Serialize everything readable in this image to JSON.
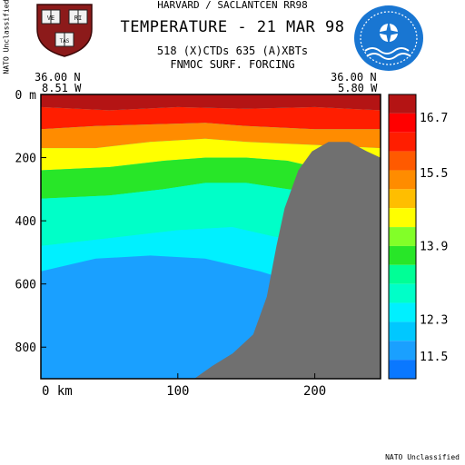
{
  "header": {
    "line1": "HARVARD / SACLANTCEN RR98",
    "title": "TEMPERATURE - 21 MAR 98",
    "line3": "518 (X)CTDs   635 (A)XBTs",
    "line4": "FNMOC SURF. FORCING"
  },
  "classification": {
    "side": "NATO Unclassified",
    "bottom": "NATO Unclassified"
  },
  "endpoints": {
    "left_lat": "36.00 N",
    "left_lon": "8.51 W",
    "right_lat": "36.00 N",
    "right_lon": "5.80 W"
  },
  "logos": {
    "left": "harvard-shield",
    "right": "nato-saclantcen-emblem",
    "left_text": [
      "VE",
      "RI",
      "TAS"
    ]
  },
  "colors": {
    "bathymetry": "#707070",
    "palette": [
      "#0a78ff",
      "#1aa0ff",
      "#00c8ff",
      "#00f0ff",
      "#00ffc8",
      "#00ff96",
      "#28e628",
      "#82ff28",
      "#ffff00",
      "#ffbe00",
      "#ff8c00",
      "#ff5a00",
      "#ff1e00",
      "#ff0000",
      "#b41414"
    ]
  },
  "chart_data": {
    "type": "heatmap",
    "title": "TEMPERATURE - 21 MAR 98",
    "xlabel": "",
    "ylabel": "",
    "xunit": "km",
    "x_ticks": [
      0,
      100,
      200
    ],
    "x_tick_labels": [
      "0 km",
      "100",
      "200"
    ],
    "y_ticks": [
      0,
      200,
      400,
      600,
      800
    ],
    "y_tick_labels": [
      "0 m",
      "200",
      "400",
      "600",
      "800"
    ],
    "xlim": [
      0,
      248
    ],
    "ylim": [
      0,
      900
    ],
    "y_inverted": true,
    "colorbar": {
      "min": 11.0,
      "max": 17.2,
      "tick_values": [
        16.7,
        15.5,
        13.9,
        12.3,
        11.5
      ],
      "tick_labels": [
        "16.7",
        "15.5",
        "13.9",
        "12.3",
        "11.5"
      ]
    },
    "layers": [
      {
        "temp": 16.9,
        "points": [
          [
            0,
            0
          ],
          [
            248,
            0
          ],
          [
            248,
            50
          ],
          [
            200,
            40
          ],
          [
            150,
            45
          ],
          [
            100,
            40
          ],
          [
            50,
            50
          ],
          [
            0,
            40
          ]
        ]
      },
      {
        "temp": 16.2,
        "points": [
          [
            0,
            40
          ],
          [
            50,
            50
          ],
          [
            100,
            40
          ],
          [
            150,
            45
          ],
          [
            200,
            40
          ],
          [
            248,
            50
          ],
          [
            248,
            110
          ],
          [
            200,
            110
          ],
          [
            150,
            100
          ],
          [
            120,
            90
          ],
          [
            80,
            95
          ],
          [
            40,
            100
          ],
          [
            0,
            110
          ]
        ]
      },
      {
        "temp": 15.4,
        "points": [
          [
            0,
            110
          ],
          [
            40,
            100
          ],
          [
            80,
            95
          ],
          [
            120,
            90
          ],
          [
            150,
            100
          ],
          [
            200,
            110
          ],
          [
            248,
            110
          ],
          [
            248,
            170
          ],
          [
            200,
            160
          ],
          [
            150,
            150
          ],
          [
            120,
            140
          ],
          [
            80,
            150
          ],
          [
            40,
            170
          ],
          [
            0,
            170
          ]
        ]
      },
      {
        "temp": 14.5,
        "points": [
          [
            0,
            170
          ],
          [
            40,
            170
          ],
          [
            80,
            150
          ],
          [
            120,
            140
          ],
          [
            150,
            150
          ],
          [
            200,
            160
          ],
          [
            248,
            170
          ],
          [
            248,
            250
          ],
          [
            200,
            230
          ],
          [
            180,
            210
          ],
          [
            150,
            200
          ],
          [
            120,
            200
          ],
          [
            90,
            210
          ],
          [
            50,
            230
          ],
          [
            0,
            240
          ]
        ]
      },
      {
        "temp": 13.7,
        "points": [
          [
            0,
            240
          ],
          [
            50,
            230
          ],
          [
            90,
            210
          ],
          [
            120,
            200
          ],
          [
            150,
            200
          ],
          [
            180,
            210
          ],
          [
            200,
            230
          ],
          [
            248,
            250
          ],
          [
            248,
            340
          ],
          [
            200,
            310
          ],
          [
            180,
            300
          ],
          [
            150,
            280
          ],
          [
            120,
            280
          ],
          [
            90,
            300
          ],
          [
            50,
            320
          ],
          [
            0,
            330
          ]
        ]
      },
      {
        "temp": 12.9,
        "points": [
          [
            0,
            330
          ],
          [
            50,
            320
          ],
          [
            90,
            300
          ],
          [
            120,
            280
          ],
          [
            150,
            280
          ],
          [
            180,
            300
          ],
          [
            200,
            310
          ],
          [
            248,
            340
          ],
          [
            248,
            500
          ],
          [
            200,
            470
          ],
          [
            170,
            450
          ],
          [
            140,
            420
          ],
          [
            100,
            430
          ],
          [
            60,
            450
          ],
          [
            0,
            480
          ]
        ]
      },
      {
        "temp": 12.3,
        "points": [
          [
            0,
            480
          ],
          [
            60,
            450
          ],
          [
            100,
            430
          ],
          [
            140,
            420
          ],
          [
            170,
            450
          ],
          [
            200,
            470
          ],
          [
            248,
            500
          ],
          [
            248,
            900
          ],
          [
            0,
            900
          ]
        ]
      },
      {
        "temp": 11.6,
        "points": [
          [
            0,
            560
          ],
          [
            40,
            520
          ],
          [
            80,
            510
          ],
          [
            120,
            520
          ],
          [
            160,
            560
          ],
          [
            190,
            600
          ],
          [
            248,
            650
          ],
          [
            248,
            900
          ],
          [
            0,
            900
          ]
        ]
      }
    ],
    "bathymetry": [
      [
        112,
        900
      ],
      [
        125,
        860
      ],
      [
        140,
        820
      ],
      [
        155,
        760
      ],
      [
        165,
        640
      ],
      [
        172,
        480
      ],
      [
        178,
        360
      ],
      [
        188,
        240
      ],
      [
        198,
        180
      ],
      [
        210,
        150
      ],
      [
        225,
        150
      ],
      [
        238,
        180
      ],
      [
        248,
        200
      ],
      [
        248,
        900
      ]
    ]
  }
}
